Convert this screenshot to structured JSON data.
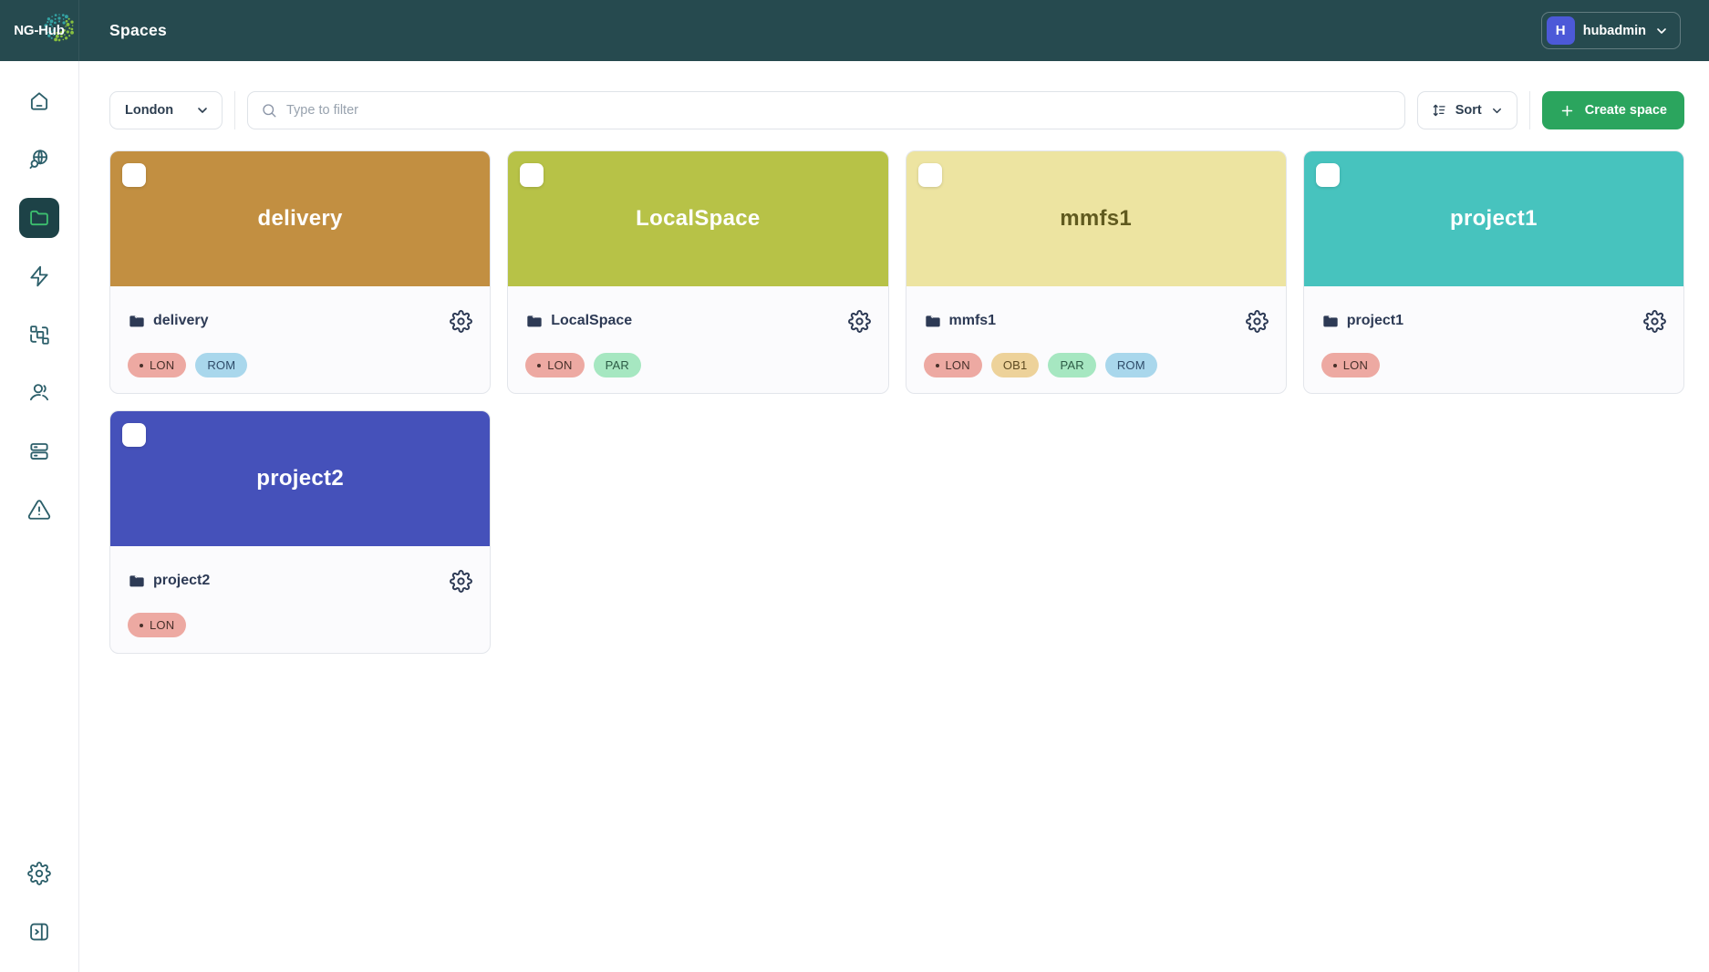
{
  "topbar": {
    "logo_text": "NG-Hub",
    "page_title": "Spaces",
    "user": {
      "initial": "H",
      "name": "hubadmin"
    }
  },
  "toolbar": {
    "region_selected": "London",
    "search_placeholder": "Type to filter",
    "search_value": "",
    "sort_label": "Sort",
    "create_space_label": "Create space"
  },
  "sidebar": {
    "items": [
      {
        "icon": "home-icon",
        "active": false
      },
      {
        "icon": "globe-search-icon",
        "active": false
      },
      {
        "icon": "spaces-folder-icon",
        "active": true
      },
      {
        "icon": "zap-icon",
        "active": false
      },
      {
        "icon": "workflow-icon",
        "active": false
      },
      {
        "icon": "users-icon",
        "active": false
      },
      {
        "icon": "server-icon",
        "active": false
      },
      {
        "icon": "alert-triangle-icon",
        "active": false
      }
    ],
    "footer_items": [
      {
        "icon": "settings-gear-icon",
        "active": false
      },
      {
        "icon": "collapse-sidebar-icon",
        "active": false
      }
    ]
  },
  "colors": {
    "topbar_bg": "#264A4F",
    "accent_green": "#2BA55E",
    "avatar_bg": "#4C59D8",
    "sidebar_icon": "#2C5F6A",
    "active_item_bg": "#1D4247",
    "active_folder_green": "#3DBF6F",
    "text_navy": "#2D3A55"
  },
  "spaces": [
    {
      "title": "delivery",
      "name": "delivery",
      "header_bg": "#C28F41",
      "title_color": "#FFFFFF",
      "tags": [
        {
          "label": "LON",
          "bg": "#EDA9A2",
          "fg": "#47302A",
          "dot": true
        },
        {
          "label": "ROM",
          "bg": "#A9D7EC",
          "fg": "#2E4B68",
          "dot": false
        }
      ]
    },
    {
      "title": "LocalSpace",
      "name": "LocalSpace",
      "header_bg": "#B7C247",
      "title_color": "#FFFFFF",
      "tags": [
        {
          "label": "LON",
          "bg": "#EDA9A2",
          "fg": "#47302A",
          "dot": true
        },
        {
          "label": "PAR",
          "bg": "#A6E7C1",
          "fg": "#2C5B45",
          "dot": false
        }
      ]
    },
    {
      "title": "mmfs1",
      "name": "mmfs1",
      "header_bg": "#EDE4A1",
      "title_color": "#605A1F",
      "tags": [
        {
          "label": "LON",
          "bg": "#EDA9A2",
          "fg": "#47302A",
          "dot": true
        },
        {
          "label": "OB1",
          "bg": "#EDD29A",
          "fg": "#5D4A22",
          "dot": false
        },
        {
          "label": "PAR",
          "bg": "#A6E7C1",
          "fg": "#2C5B45",
          "dot": false
        },
        {
          "label": "ROM",
          "bg": "#A9D7EC",
          "fg": "#2E4B68",
          "dot": false
        }
      ]
    },
    {
      "title": "project1",
      "name": "project1",
      "header_bg": "#47C3BE",
      "title_color": "#FFFFFF",
      "tags": [
        {
          "label": "LON",
          "bg": "#EDA9A2",
          "fg": "#47302A",
          "dot": true
        }
      ]
    },
    {
      "title": "project2",
      "name": "project2",
      "header_bg": "#4551BA",
      "title_color": "#FFFFFF",
      "tags": [
        {
          "label": "LON",
          "bg": "#EDA9A2",
          "fg": "#47302A",
          "dot": true
        }
      ]
    }
  ]
}
